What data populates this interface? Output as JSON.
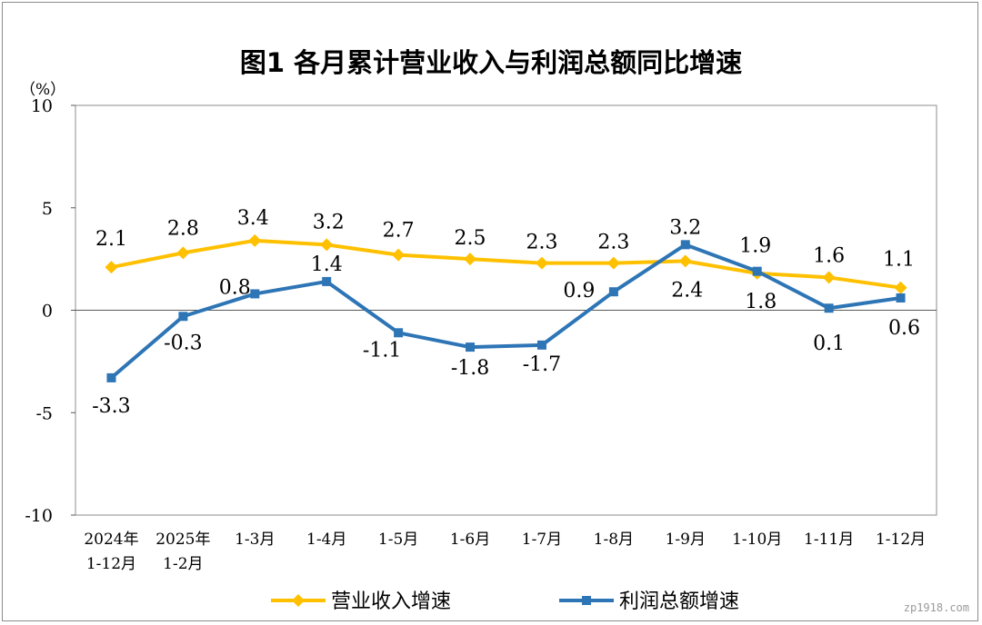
{
  "title": "图1  各月累计营业收入与利润总额同比增速",
  "unit_label": "（%）",
  "watermark": "zp1918.com",
  "chart_data": {
    "type": "line",
    "title": "图1  各月累计营业收入与利润总额同比增速",
    "ylabel": "（%）",
    "xlabel": "",
    "ylim": [
      -10,
      10
    ],
    "yticks": [
      "10",
      "5",
      "0",
      "-5",
      "-10"
    ],
    "ytick_values": [
      10,
      5,
      0,
      -5,
      -10
    ],
    "grid": false,
    "legend_position": "bottom",
    "categories": [
      [
        "2024年",
        "1-12月"
      ],
      [
        "2025年",
        "1-2月"
      ],
      [
        "1-3月"
      ],
      [
        "1-4月"
      ],
      [
        "1-5月"
      ],
      [
        "1-6月"
      ],
      [
        "1-7月"
      ],
      [
        "1-8月"
      ],
      [
        "1-9月"
      ],
      [
        "1-10月"
      ],
      [
        "1-11月"
      ],
      [
        "1-12月"
      ]
    ],
    "series": [
      {
        "name": "营业收入增速",
        "color": "#FFC000",
        "marker": "diamond",
        "values": [
          2.1,
          2.8,
          3.4,
          3.2,
          2.7,
          2.5,
          2.3,
          2.3,
          2.4,
          1.8,
          1.6,
          1.1
        ],
        "labels": [
          "2.1",
          "2.8",
          "3.4",
          "3.2",
          "2.7",
          "2.5",
          "2.3",
          "2.3",
          "2.4",
          "1.8",
          "1.6",
          "1.1"
        ]
      },
      {
        "name": "利润总额增速",
        "color": "#2E75B6",
        "marker": "square",
        "values": [
          -3.3,
          -0.3,
          0.8,
          1.4,
          -1.1,
          -1.8,
          -1.7,
          0.9,
          3.2,
          1.9,
          0.1,
          0.6
        ],
        "labels": [
          "-3.3",
          "-0.3",
          "0.8",
          "1.4",
          "-1.1",
          "-1.8",
          "-1.7",
          "0.9",
          "3.2",
          "1.9",
          "0.1",
          "0.6"
        ]
      }
    ]
  }
}
